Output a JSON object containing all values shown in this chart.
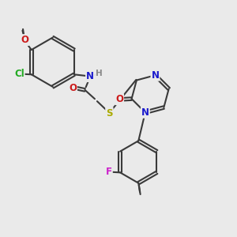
{
  "bg_color": "#eaeaea",
  "bond_color": "#3a3a3a",
  "bond_lw": 1.5,
  "dbo": 0.06,
  "atom_colors": {
    "H": "#888888",
    "N": "#1a1acc",
    "O": "#cc1a1a",
    "S": "#aaaa00",
    "Cl": "#22aa22",
    "F": "#cc22cc"
  },
  "fs": 8.5,
  "xlim": [
    0,
    10
  ],
  "ylim": [
    0,
    10
  ]
}
